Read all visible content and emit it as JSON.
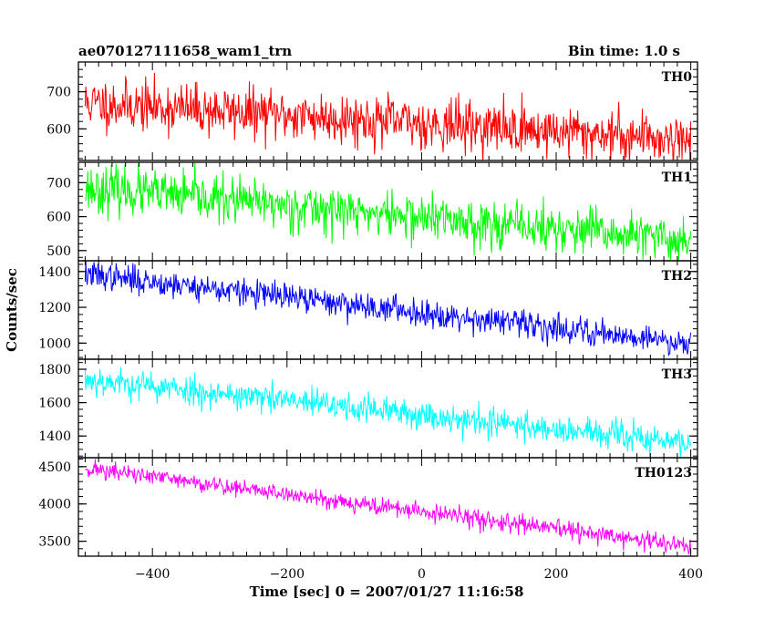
{
  "header": {
    "title": "ae070127111658_wam1_trn",
    "bin_time": "Bin time: 1.0 s"
  },
  "chart_data": {
    "type": "line",
    "xlabel": "Time [sec] 0 = 2007/01/27 11:16:58",
    "ylabel": "Counts/sec",
    "xlim": [
      -510,
      410
    ],
    "x_ticks": [
      -400,
      -200,
      0,
      200,
      400
    ],
    "x_tick_labels": [
      "−400",
      "−200",
      "0",
      "200",
      "400"
    ],
    "x_range_data": [
      -500,
      400
    ],
    "bin": 1.0,
    "panels": [
      {
        "name": "TH0",
        "color": "#ff0000",
        "ylim": [
          515,
          780
        ],
        "y_ticks": [
          600,
          700
        ],
        "y_tick_labels": [
          "600",
          "700"
        ],
        "trend_start": 670,
        "trend_end": 572,
        "noise": 34,
        "seed": 11
      },
      {
        "name": "TH1",
        "color": "#00ff00",
        "ylim": [
          470,
          760
        ],
        "y_ticks": [
          500,
          600,
          700
        ],
        "y_tick_labels": [
          "500",
          "600",
          "700"
        ],
        "trend_start": 685,
        "trend_end": 528,
        "noise": 34,
        "seed": 23
      },
      {
        "name": "TH2",
        "color": "#0000ff",
        "ylim": [
          910,
          1460
        ],
        "y_ticks": [
          1000,
          1200,
          1400
        ],
        "y_tick_labels": [
          "1000",
          "1200",
          "1400"
        ],
        "trend_start": 1385,
        "trend_end": 1000,
        "noise": 38,
        "seed": 37
      },
      {
        "name": "TH3",
        "color": "#00ffff",
        "ylim": [
          1270,
          1860
        ],
        "y_ticks": [
          1400,
          1600,
          1800
        ],
        "y_tick_labels": [
          "1400",
          "1600",
          "1800"
        ],
        "trend_start": 1740,
        "trend_end": 1355,
        "noise": 44,
        "seed": 53
      },
      {
        "name": "TH0123",
        "color": "#ff00ff",
        "ylim": [
          3300,
          4620
        ],
        "y_ticks": [
          3500,
          4000,
          4500
        ],
        "y_tick_labels": [
          "3500",
          "4000",
          "4500"
        ],
        "trend_start": 4480,
        "trend_end": 3430,
        "noise": 60,
        "seed": 71
      }
    ]
  }
}
